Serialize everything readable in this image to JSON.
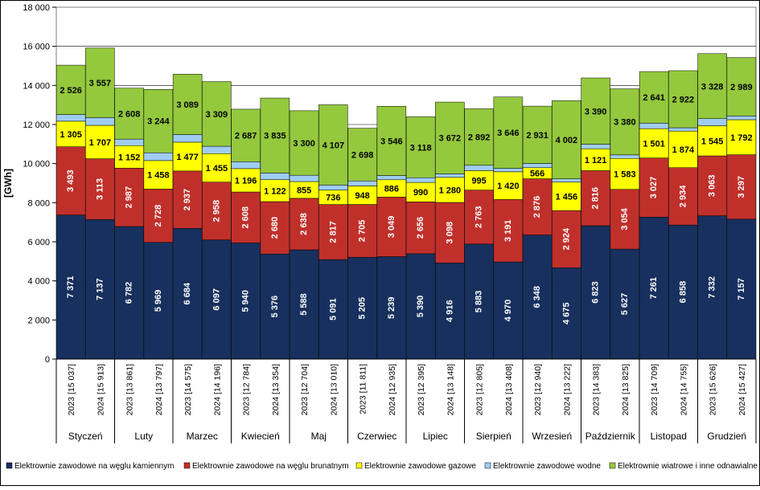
{
  "chart_data": {
    "type": "bar",
    "stacked": true,
    "ylabel": "[GWh]",
    "ylim": [
      0,
      18000
    ],
    "yticks": [
      "0",
      "2 000",
      "4 000",
      "6 000",
      "8 000",
      "10 000",
      "12 000",
      "14 000",
      "16 000",
      "18 000"
    ],
    "grid": true,
    "legend_position": "bottom",
    "months": [
      "Styczeń",
      "Luty",
      "Marzec",
      "Kwiecień",
      "Maj",
      "Czerwiec",
      "Lipiec",
      "Sierpień",
      "Wrzesień",
      "Październik",
      "Listopad",
      "Grudzień"
    ],
    "categories": [
      "2023 [15 037]",
      "2024 [15 913]",
      "2023 [13 861]",
      "2024 [13 797]",
      "2023 [14 575]",
      "2024 [14 196]",
      "2023 [12 784]",
      "2024 [13 354]",
      "2023 [12 704]",
      "2024 [13 010]",
      "2023 [11 811]",
      "2024 [12 935]",
      "2023 [12 395]",
      "2024 [13 148]",
      "2023 [12 805]",
      "2024 [13 408]",
      "2023 [12 940]",
      "2024 [13 222]",
      "2023 [14 383]",
      "2024 [13 825]",
      "2023 [14 709]",
      "2024 [14 755]",
      "2023 [15 626]",
      "2024 [15 427]"
    ],
    "series": [
      {
        "name": "Elektrownie zawodowe na węglu kamiennym",
        "color": "#17305e",
        "label_color": "#ffffff",
        "values": [
          7371,
          7137,
          6782,
          5969,
          6684,
          6097,
          5940,
          5376,
          5588,
          5091,
          5205,
          5239,
          5390,
          4916,
          5883,
          4970,
          6348,
          4675,
          6823,
          5627,
          7261,
          6858,
          7332,
          7157
        ],
        "labels": [
          "7 371",
          "7 137",
          "6 782",
          "5 969",
          "6 684",
          "6 097",
          "5 940",
          "5 376",
          "5 588",
          "5 091",
          "5 205",
          "5 239",
          "5 390",
          "4 916",
          "5 883",
          "4 970",
          "6 348",
          "4 675",
          "6 823",
          "5 627",
          "7 261",
          "6 858",
          "7 332",
          "7 157"
        ]
      },
      {
        "name": "Elektrownie zawodowe na węglu brunatnym",
        "color": "#c0302b",
        "label_color": "#ffffff",
        "values": [
          3493,
          3113,
          2987,
          2728,
          2937,
          2958,
          2608,
          2680,
          2638,
          2817,
          2705,
          3049,
          2656,
          3098,
          2763,
          3191,
          2876,
          2924,
          2816,
          3054,
          3027,
          2934,
          3063,
          3297
        ],
        "labels": [
          "3 493",
          "3 113",
          "2 987",
          "2 728",
          "2 937",
          "2 958",
          "2 608",
          "2 680",
          "2 638",
          "2 817",
          "2 705",
          "3 049",
          "2 656",
          "3 098",
          "2 763",
          "3 191",
          "2 876",
          "2 924",
          "2 816",
          "3 054",
          "3 027",
          "2 934",
          "3 063",
          "3 297"
        ]
      },
      {
        "name": "Elektrownie zawodowe gazowe",
        "color": "#ffff00",
        "label_color": "#000000",
        "values": [
          1305,
          1707,
          1152,
          1458,
          1477,
          1455,
          1196,
          1122,
          855,
          736,
          948,
          886,
          990,
          1280,
          995,
          1420,
          566,
          1456,
          1121,
          1583,
          1501,
          1874,
          1545,
          1792
        ],
        "labels": [
          "1 305",
          "1 707",
          "1 152",
          "1 458",
          "1 477",
          "1 455",
          "1 196",
          "1 122",
          "855",
          "736",
          "948",
          "886",
          "990",
          "1 280",
          "995",
          "1 420",
          "566",
          "1 456",
          "1 121",
          "1 583",
          "1 501",
          "1 874",
          "1 545",
          "1 792"
        ]
      },
      {
        "name": "Elektrownie zawodowe wodne",
        "color": "#9fcdf2",
        "label_color": "#000000",
        "values": [
          342,
          399,
          332,
          398,
          388,
          377,
          353,
          341,
          323,
          259,
          255,
          215,
          241,
          182,
          272,
          181,
          219,
          165,
          233,
          181,
          279,
          167,
          358,
          192
        ],
        "labels": []
      },
      {
        "name": "Elektrownie wiatrowe i inne odnawialne",
        "color": "#94c83d",
        "label_color": "#000000",
        "values": [
          2526,
          3557,
          2608,
          3244,
          3089,
          3309,
          2687,
          3835,
          3300,
          4107,
          2698,
          3546,
          3118,
          3672,
          2892,
          3646,
          2931,
          4002,
          3390,
          3380,
          2641,
          2922,
          3328,
          2989
        ],
        "labels": [
          "2 526",
          "3 557",
          "2 608",
          "3 244",
          "3 089",
          "3 309",
          "2 687",
          "3 835",
          "3 300",
          "4 107",
          "2 698",
          "3 546",
          "3 118",
          "3 672",
          "2 892",
          "3 646",
          "2 931",
          "4 002",
          "3 390",
          "3 380",
          "2 641",
          "2 922",
          "3 328",
          "2 989"
        ]
      }
    ]
  }
}
